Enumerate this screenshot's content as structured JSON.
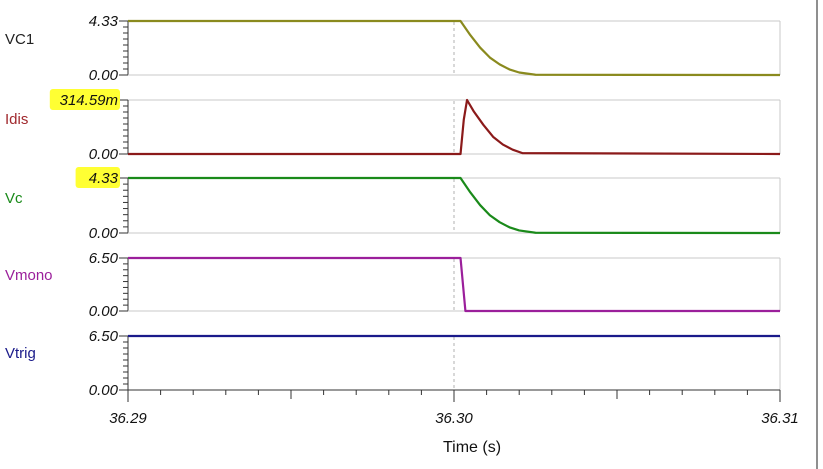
{
  "chart_data": {
    "type": "line",
    "x_axis": {
      "label": "Time (s)",
      "range": [
        36.29,
        36.31
      ],
      "ticks": [
        "36.29",
        "36.30",
        "36.31"
      ],
      "cursor_x": 36.3
    },
    "panels": [
      {
        "name": "VC1",
        "color": "#8a8a1e",
        "name_color": "#222222",
        "max_label": "4.33",
        "min_label": "0.00",
        "highlight_max": false,
        "ylim": [
          0,
          4.33
        ],
        "x": [
          36.29,
          36.3002,
          36.3005,
          36.3008,
          36.3011,
          36.3014,
          36.3017,
          36.302,
          36.3025,
          36.31
        ],
        "y": [
          4.33,
          4.33,
          3.2,
          2.2,
          1.4,
          0.85,
          0.45,
          0.2,
          0.02,
          0.0
        ]
      },
      {
        "name": "Idis",
        "color": "#8b1a1a",
        "name_color": "#a0282d",
        "max_label": "314.59m",
        "min_label": "0.00",
        "highlight_max": true,
        "ylim": [
          0,
          0.31459
        ],
        "x": [
          36.29,
          36.3002,
          36.3003,
          36.3004,
          36.3006,
          36.3009,
          36.3012,
          36.3015,
          36.3018,
          36.3021,
          36.31
        ],
        "y": [
          0.0,
          0.0,
          0.2,
          0.31459,
          0.25,
          0.17,
          0.1,
          0.055,
          0.025,
          0.005,
          0.0
        ]
      },
      {
        "name": "Vc",
        "color": "#1a8a1a",
        "name_color": "#1a8a1a",
        "max_label": "4.33",
        "min_label": "0.00",
        "highlight_max": true,
        "ylim": [
          0,
          4.33
        ],
        "x": [
          36.29,
          36.3002,
          36.3005,
          36.3008,
          36.3011,
          36.3014,
          36.3017,
          36.302,
          36.3025,
          36.31
        ],
        "y": [
          4.33,
          4.33,
          3.2,
          2.2,
          1.4,
          0.85,
          0.45,
          0.2,
          0.02,
          0.0
        ]
      },
      {
        "name": "Vmono",
        "color": "#9b1f9b",
        "name_color": "#9b1f9b",
        "max_label": "6.50",
        "min_label": "0.00",
        "highlight_max": false,
        "ylim": [
          0,
          6.5
        ],
        "x": [
          36.29,
          36.3002,
          36.30035,
          36.31
        ],
        "y": [
          6.5,
          6.5,
          0.0,
          0.0
        ]
      },
      {
        "name": "Vtrig",
        "color": "#1a1a8a",
        "name_color": "#1a1a8a",
        "max_label": "6.50",
        "min_label": "0.00",
        "highlight_max": false,
        "ylim": [
          0,
          6.5
        ],
        "x": [
          36.29,
          36.31
        ],
        "y": [
          6.5,
          6.5
        ]
      }
    ]
  }
}
